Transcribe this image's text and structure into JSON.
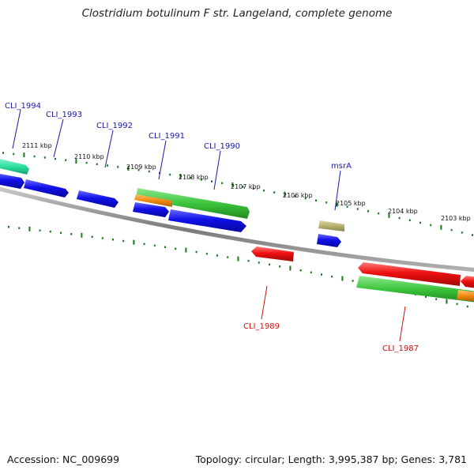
{
  "title": "Clostridium botulinum F str. Langeland, complete genome",
  "footer": {
    "accession": "Accession: NC_009699",
    "stats": "Topology: circular; Length: 3,995,387 bp; Genes: 3,781"
  },
  "scale_labels": [
    "2111 kbp",
    "2110 kbp",
    "2109 kbp",
    "2108 kbp",
    "2107 kbp",
    "2106 kbp",
    "2105 kbp",
    "2104 kbp",
    "2103 kbp"
  ],
  "gene_labels": {
    "forward": [
      "CLI_1994",
      "CLI_1993",
      "CLI_1992",
      "CLI_1991",
      "CLI_1990",
      "msrA"
    ],
    "reverse": [
      "CLI_1989",
      "CLI_1987"
    ]
  },
  "colors": {
    "forward_label": "#1a1aa8",
    "reverse_label": "#cc1111",
    "cds_forward": "#1010e0",
    "cds_reverse": "#e01010",
    "gene": "#3cc43c",
    "teal": "#2ee0a0",
    "orange": "#f08a10",
    "khaki": "#b8b070",
    "backbone": "#8a8a8a",
    "ticks": "#1a7a1a"
  }
}
